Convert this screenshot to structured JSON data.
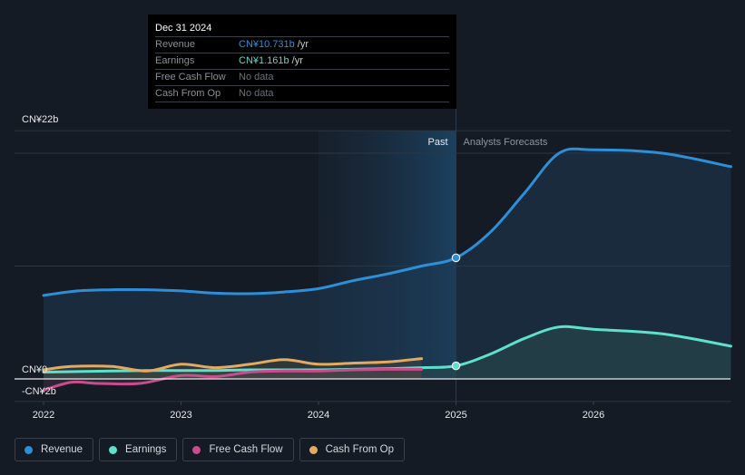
{
  "tooltip": {
    "date": "Dec 31 2024",
    "rows": [
      {
        "label": "Revenue",
        "value": "CN¥10.731b",
        "unit": "/yr",
        "color": "#2e8fd9"
      },
      {
        "label": "Earnings",
        "value": "CN¥1.161b",
        "unit": "/yr",
        "color": "#5dd9c4"
      },
      {
        "label": "Free Cash Flow",
        "value": "No data",
        "unit": "",
        "color": "#6b7078"
      },
      {
        "label": "Cash From Op",
        "value": "No data",
        "unit": "",
        "color": "#6b7078"
      }
    ]
  },
  "legend": [
    {
      "label": "Revenue",
      "color": "#2e8fd9"
    },
    {
      "label": "Earnings",
      "color": "#5ee0cb"
    },
    {
      "label": "Free Cash Flow",
      "color": "#c84d8c"
    },
    {
      "label": "Cash From Op",
      "color": "#e3aa60"
    }
  ],
  "chart_data": {
    "type": "line",
    "title": "",
    "xlabel": "",
    "ylabel": "",
    "currency": "CNY",
    "unit": "billions",
    "xlim": [
      2021.99,
      2027.0
    ],
    "ylim": [
      -2,
      22
    ],
    "y_tick_labels": [
      {
        "value": 22,
        "label": "CN¥22b"
      },
      {
        "value": 0,
        "label": "CN¥0"
      },
      {
        "value": -2,
        "label": "-CN¥2b"
      }
    ],
    "x_tick_labels": [
      {
        "value": 2022,
        "label": "2022"
      },
      {
        "value": 2023,
        "label": "2023"
      },
      {
        "value": 2024,
        "label": "2024"
      },
      {
        "value": 2025,
        "label": "2025"
      },
      {
        "value": 2026,
        "label": "2026"
      }
    ],
    "gridlines_y": [
      -2,
      10,
      20,
      22
    ],
    "divider_x": 2025.0,
    "past_label": "Past",
    "forecast_label": "Analysts Forecasts",
    "past_shade_start": 2024.0,
    "series": [
      {
        "name": "Revenue",
        "color": "#2e8fd9",
        "points": [
          [
            2022.0,
            7.4
          ],
          [
            2022.25,
            7.8
          ],
          [
            2022.5,
            7.9
          ],
          [
            2022.75,
            7.9
          ],
          [
            2023.0,
            7.8
          ],
          [
            2023.25,
            7.6
          ],
          [
            2023.5,
            7.55
          ],
          [
            2023.75,
            7.7
          ],
          [
            2024.0,
            8.0
          ],
          [
            2024.25,
            8.7
          ],
          [
            2024.5,
            9.3
          ],
          [
            2024.75,
            10.0
          ],
          [
            2025.0,
            10.73
          ]
        ],
        "forecast": [
          [
            2025.0,
            10.73
          ],
          [
            2025.25,
            13.0
          ],
          [
            2025.5,
            16.5
          ],
          [
            2025.75,
            20.0
          ],
          [
            2026.0,
            20.3
          ],
          [
            2026.5,
            20.0
          ],
          [
            2027.0,
            18.8
          ]
        ],
        "highlight": [
          2025.0,
          10.73
        ]
      },
      {
        "name": "Earnings",
        "color": "#5ee0cb",
        "points": [
          [
            2022.0,
            0.6
          ],
          [
            2022.25,
            0.65
          ],
          [
            2022.5,
            0.7
          ],
          [
            2022.75,
            0.75
          ],
          [
            2023.0,
            0.75
          ],
          [
            2023.25,
            0.75
          ],
          [
            2023.5,
            0.8
          ],
          [
            2023.75,
            0.8
          ],
          [
            2024.0,
            0.8
          ],
          [
            2024.25,
            0.85
          ],
          [
            2024.5,
            0.9
          ],
          [
            2024.75,
            1.0
          ],
          [
            2025.0,
            1.16
          ]
        ],
        "forecast": [
          [
            2025.0,
            1.16
          ],
          [
            2025.25,
            2.2
          ],
          [
            2025.5,
            3.6
          ],
          [
            2025.75,
            4.6
          ],
          [
            2026.0,
            4.4
          ],
          [
            2026.5,
            4.0
          ],
          [
            2027.0,
            2.9
          ]
        ],
        "highlight": [
          2025.0,
          1.16
        ]
      },
      {
        "name": "Free Cash Flow",
        "color": "#c84d8c",
        "points": [
          [
            2022.0,
            -1.0
          ],
          [
            2022.2,
            -0.3
          ],
          [
            2022.4,
            -0.4
          ],
          [
            2022.7,
            -0.4
          ],
          [
            2023.0,
            0.3
          ],
          [
            2023.25,
            0.2
          ],
          [
            2023.5,
            0.6
          ],
          [
            2023.75,
            0.7
          ],
          [
            2024.0,
            0.7
          ],
          [
            2024.25,
            0.8
          ],
          [
            2024.5,
            0.85
          ],
          [
            2024.75,
            0.85
          ]
        ],
        "forecast": []
      },
      {
        "name": "Cash From Op",
        "color": "#e3aa60",
        "points": [
          [
            2022.0,
            0.8
          ],
          [
            2022.2,
            1.1
          ],
          [
            2022.5,
            1.1
          ],
          [
            2022.75,
            0.7
          ],
          [
            2023.0,
            1.3
          ],
          [
            2023.25,
            1.0
          ],
          [
            2023.5,
            1.3
          ],
          [
            2023.75,
            1.7
          ],
          [
            2024.0,
            1.3
          ],
          [
            2024.25,
            1.4
          ],
          [
            2024.5,
            1.5
          ],
          [
            2024.75,
            1.8
          ]
        ],
        "forecast": []
      }
    ]
  }
}
